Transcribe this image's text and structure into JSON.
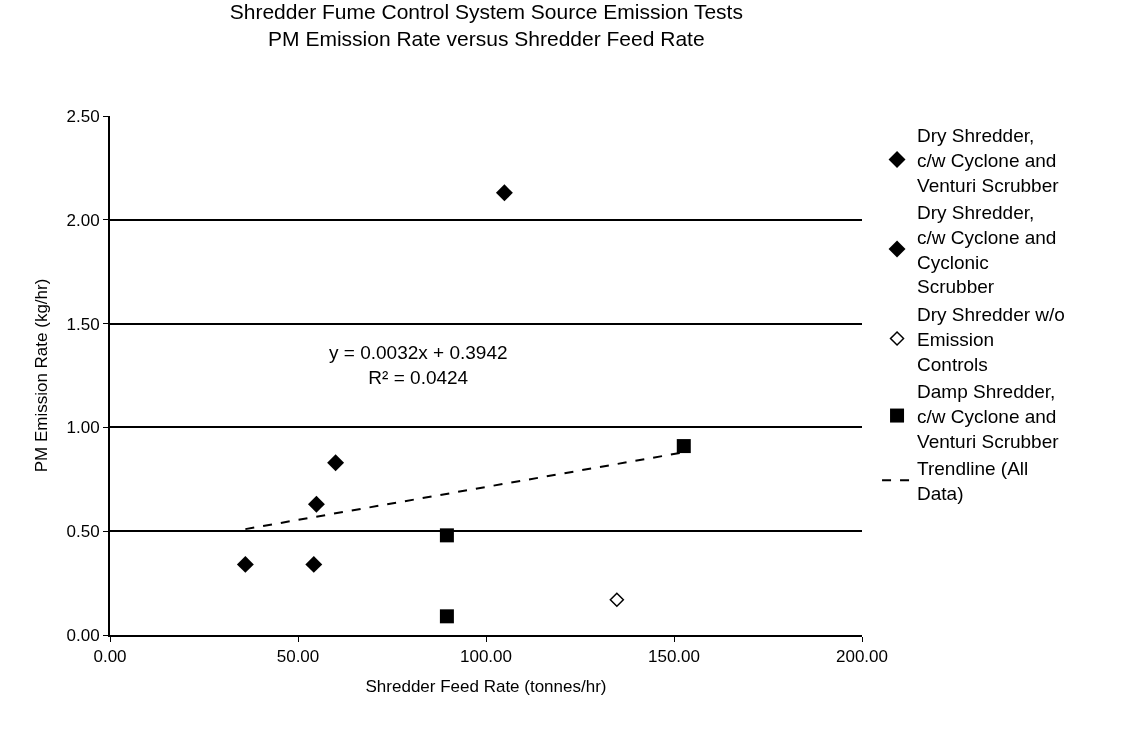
{
  "chart_data": {
    "type": "scatter",
    "title": "Shredder Fume Control System Source Emission Tests",
    "subtitle": "PM Emission Rate versus Shredder Feed Rate",
    "xlabel": "Shredder Feed Rate (tonnes/hr)",
    "ylabel": "PM Emission Rate (kg/hr)",
    "xlim": [
      0,
      200
    ],
    "xticks": [
      {
        "value": 0,
        "label": "0.00"
      },
      {
        "value": 50,
        "label": "50.00"
      },
      {
        "value": 100,
        "label": "100.00"
      },
      {
        "value": 150,
        "label": "150.00"
      },
      {
        "value": 200,
        "label": "200.00"
      }
    ],
    "ylim": [
      0,
      2.5
    ],
    "yticks": [
      {
        "value": 0,
        "label": "0.00"
      },
      {
        "value": 0.5,
        "label": "0.50"
      },
      {
        "value": 1,
        "label": "1.00"
      },
      {
        "value": 1.5,
        "label": "1.50"
      },
      {
        "value": 2,
        "label": "2.00"
      },
      {
        "value": 2.5,
        "label": "2.50"
      }
    ],
    "grid": "y",
    "legend": "right",
    "series": [
      {
        "name": "Dry Shredder, c/w Cyclone and Venturi Scrubber",
        "color": "#000000",
        "marker": "diamond",
        "x": [
          104.9,
          60,
          54.9
        ],
        "values": [
          2.13,
          0.83,
          0.63
        ]
      },
      {
        "name": "Dry Shredder, c/w Cyclone and Cyclonic Scrubber",
        "color": "#000000",
        "marker": "diamond",
        "x": [
          36,
          54.2
        ],
        "values": [
          0.34,
          0.34
        ]
      },
      {
        "name": "Dry Shredder w/o Emission Controls",
        "color": "#000000",
        "marker": "diamond-open",
        "x": [
          134.8
        ],
        "values": [
          0.17
        ]
      },
      {
        "name": "Damp Shredder, c/w Cyclone and Venturi Scrubber",
        "color": "#000000",
        "marker": "square",
        "x": [
          89.6,
          89.6,
          152.6
        ],
        "values": [
          0.48,
          0.09,
          0.91
        ]
      },
      {
        "name": "Trendline (All Data)",
        "color": "#000000",
        "type": "line",
        "line_style": "dashed",
        "marker": "none",
        "x": [
          36,
          152.6
        ],
        "values": [
          0.51,
          0.88
        ]
      }
    ],
    "annotations": [
      "y = 0.0032x + 0.3942",
      "R² = 0.0424"
    ]
  }
}
